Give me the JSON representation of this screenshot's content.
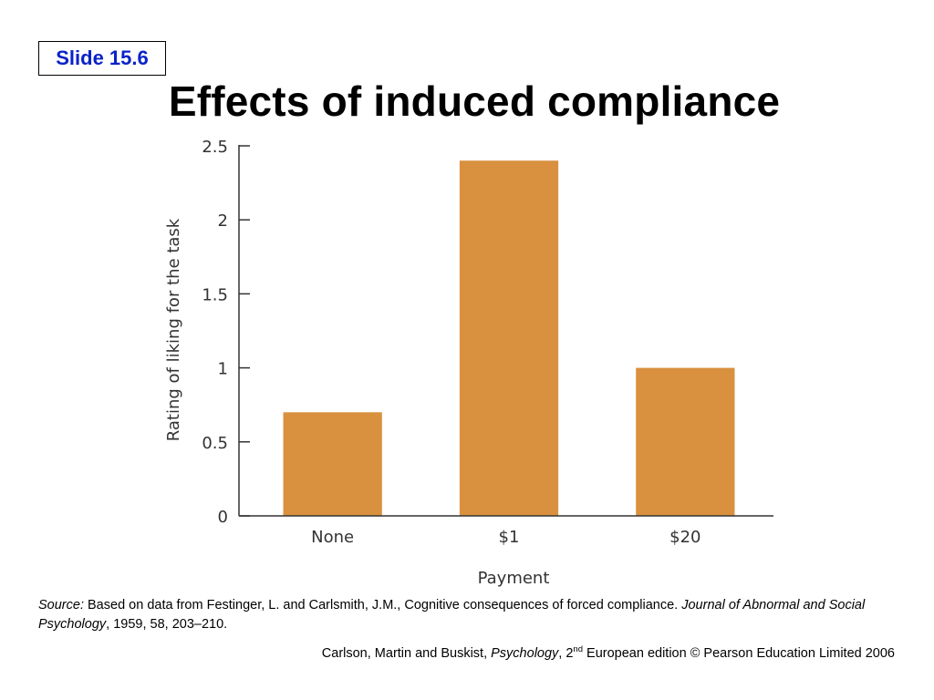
{
  "slide": {
    "tag": "Slide 15.6",
    "title": "Effects of induced compliance"
  },
  "chart_data": {
    "type": "bar",
    "categories": [
      "None",
      "$1",
      "$20"
    ],
    "values": [
      0.7,
      2.4,
      1.0
    ],
    "xlabel": "Payment",
    "ylabel": "Rating of liking for the task",
    "ylim": [
      0,
      2.5
    ],
    "yticks": [
      0,
      0.5,
      1,
      1.5,
      2,
      2.5
    ],
    "ytick_labels": [
      "0",
      "0.5",
      "1",
      "1.5",
      "2",
      "2.5"
    ],
    "grid": false,
    "bar_color": "#d9913f"
  },
  "source": {
    "label": "Source:",
    "text_1": " Based on data from Festinger, L. and Carlsmith, J.M., Cognitive consequences of forced compliance. ",
    "journal": "Journal of Abnormal and Social Psychology",
    "text_2": ", 1959, 58, 203–210."
  },
  "credit": {
    "authors": "Carlson, Martin and Buskist, ",
    "book": "Psychology",
    "sep": ", 2",
    "ordinal": "nd",
    "rest": " European edition © Pearson Education Limited 2006"
  }
}
